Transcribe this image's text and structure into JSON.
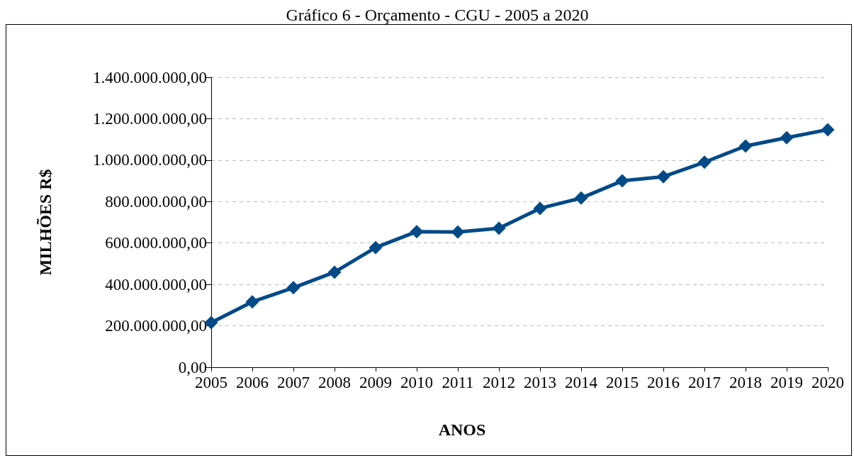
{
  "chart_data": {
    "type": "line",
    "title": "Gráfico 6 - Orçamento - CGU - 2005 a 2020",
    "xlabel": "ANOS",
    "ylabel": "MILHÕES R$",
    "categories": [
      "2005",
      "2006",
      "2007",
      "2008",
      "2009",
      "2010",
      "2011",
      "2012",
      "2013",
      "2014",
      "2015",
      "2016",
      "2017",
      "2018",
      "2019",
      "2020"
    ],
    "values": [
      216000000,
      316000000,
      384000000,
      459000000,
      578000000,
      655000000,
      653000000,
      671000000,
      767000000,
      817000000,
      900000000,
      920000000,
      990000000,
      1068000000,
      1108000000,
      1147000000
    ],
    "color": "#004a87",
    "ylim": [
      0,
      1400000000
    ],
    "yticks": [
      {
        "value": 0,
        "label": "0,00"
      },
      {
        "value": 200000000,
        "label": "200.000.000,00"
      },
      {
        "value": 400000000,
        "label": "400.000.000,00"
      },
      {
        "value": 600000000,
        "label": "600.000.000,00"
      },
      {
        "value": 800000000,
        "label": "800.000.000,00"
      },
      {
        "value": 1000000000,
        "label": "1.000.000.000,00"
      },
      {
        "value": 1200000000,
        "label": "1.200.000.000,00"
      },
      {
        "value": 1400000000,
        "label": "1.400.000.000,00"
      }
    ],
    "grid": "y",
    "marker": "diamond",
    "line_style": "solid"
  }
}
